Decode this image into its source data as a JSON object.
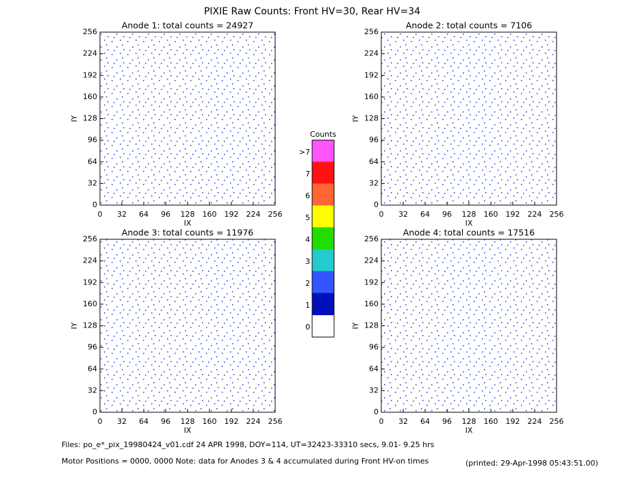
{
  "title": "PIXIE Raw Counts:  Front HV=30, Rear HV=34",
  "chart_data": [
    {
      "type": "heatmap",
      "title": "Anode 1: total counts = 24927",
      "xlabel": "IX",
      "ylabel": "IY",
      "xlim": [
        0,
        256
      ],
      "ylim": [
        0,
        256
      ],
      "xticks": [
        0,
        32,
        64,
        96,
        128,
        160,
        192,
        224,
        256
      ],
      "yticks": [
        0,
        32,
        64,
        96,
        128,
        160,
        192,
        224,
        256
      ]
    },
    {
      "type": "heatmap",
      "title": "Anode 2: total counts = 7106",
      "xlabel": "IX",
      "ylabel": "IY",
      "xlim": [
        0,
        256
      ],
      "ylim": [
        0,
        256
      ],
      "xticks": [
        0,
        32,
        64,
        96,
        128,
        160,
        192,
        224,
        256
      ],
      "yticks": [
        0,
        32,
        64,
        96,
        128,
        160,
        192,
        224,
        256
      ]
    },
    {
      "type": "heatmap",
      "title": "Anode 3: total counts = 11976",
      "xlabel": "IX",
      "ylabel": "IY",
      "xlim": [
        0,
        256
      ],
      "ylim": [
        0,
        256
      ],
      "xticks": [
        0,
        32,
        64,
        96,
        128,
        160,
        192,
        224,
        256
      ],
      "yticks": [
        0,
        32,
        64,
        96,
        128,
        160,
        192,
        224,
        256
      ]
    },
    {
      "type": "heatmap",
      "title": "Anode 4: total counts = 17516",
      "xlabel": "IX",
      "ylabel": "IY",
      "xlim": [
        0,
        256
      ],
      "ylim": [
        0,
        256
      ],
      "xticks": [
        0,
        32,
        64,
        96,
        128,
        160,
        192,
        224,
        256
      ],
      "yticks": [
        0,
        32,
        64,
        96,
        128,
        160,
        192,
        224,
        256
      ]
    }
  ],
  "colorbar": {
    "title": "Counts",
    "labels": [
      ">7",
      "7",
      "6",
      "5",
      "4",
      "3",
      "2",
      "1",
      "0"
    ],
    "colors": [
      "#ff55ff",
      "#ff1111",
      "#ff6633",
      "#ffff00",
      "#22dd00",
      "#22cccc",
      "#3355ff",
      "#0011bb",
      "#ffffff"
    ]
  },
  "footer": {
    "files": "Files: po_e*_pix_19980424_v01.cdf   24 APR 1998, DOY=114, UT=32423-33310 secs,  9.01- 9.25 hrs",
    "motor": "Motor Positions = 0000, 0000   Note: data for Anodes 3 & 4 accumulated during Front HV-on times",
    "printed": "(printed: 29-Apr-1998 05:43:51.00)"
  }
}
